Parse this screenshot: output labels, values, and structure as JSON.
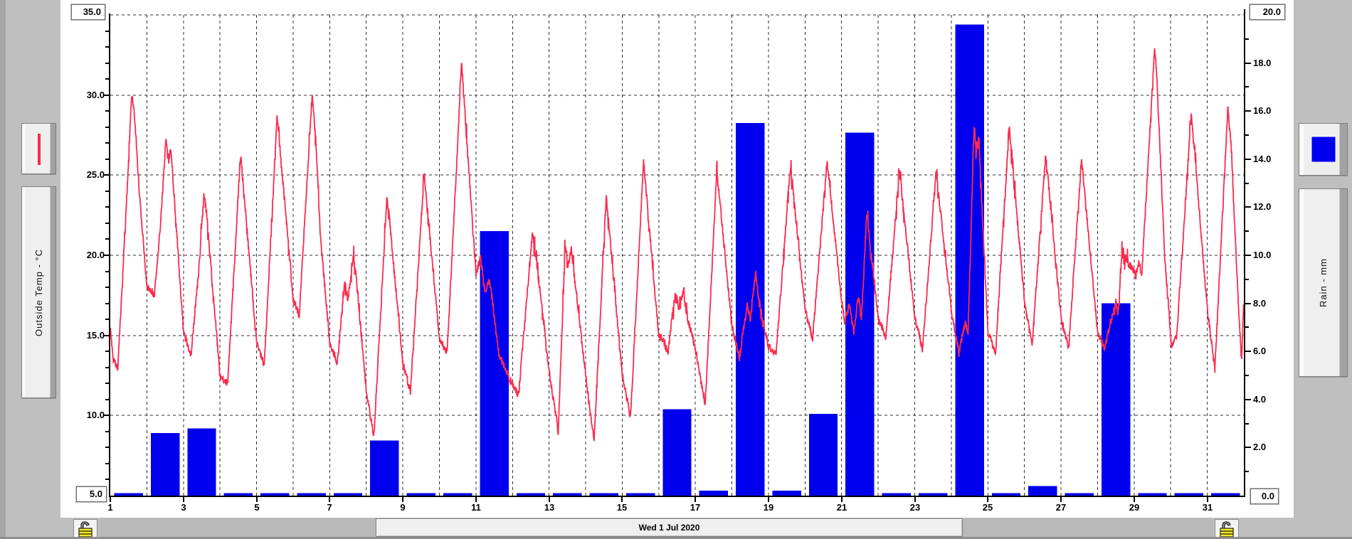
{
  "scrollbar": {
    "date_label": "Wed 1 Jul 2020"
  },
  "legend_left": {
    "series_label": "Outside Temp - °C",
    "sample": "red-line"
  },
  "legend_right": {
    "series_label": "Rain - mm",
    "sample": "blue-square"
  },
  "value_boxes": {
    "temp_axis_max": "35.0",
    "temp_axis_min": "5.0",
    "rain_axis_max": "20.0",
    "rain_axis_min": "0.0"
  },
  "colors": {
    "temp_line": "#fa2b4d",
    "rain_bar": "#0000ee",
    "grid": "#2d2d2d",
    "axis": "#000000",
    "panel": "#ffffff",
    "window_bg": "#bfbfbf"
  },
  "chart_data": {
    "type": "line+bar",
    "title": "",
    "x_axis": {
      "days": 31,
      "tick_labels": [
        "1",
        "3",
        "5",
        "7",
        "9",
        "11",
        "13",
        "15",
        "17",
        "19",
        "21",
        "23",
        "25",
        "27",
        "29",
        "31"
      ],
      "grid": "dashed-every-day"
    },
    "left_axis": {
      "label": "Outside Temp - °C",
      "min": 5,
      "max": 35,
      "minor_step": 1,
      "major_step": 5,
      "mid_labels": [
        "30.0",
        "25.0",
        "20.0",
        "15.0",
        "10.0"
      ],
      "boxed_max": "35.0",
      "boxed_min": "5.0"
    },
    "right_axis": {
      "label": "Rain - mm",
      "min": 0,
      "max": 20,
      "minor_step": 1,
      "major_step": 2,
      "mid_labels": [
        "18.0",
        "16.0",
        "14.0",
        "12.0",
        "10.0",
        "8.0",
        "6.0",
        "4.0",
        "2.0"
      ],
      "boxed_max": "20.0",
      "boxed_min": "0.0"
    },
    "series": [
      {
        "name": "Outside Temp",
        "unit": "°C",
        "type": "line",
        "days": [
          {
            "day": 1,
            "low": 13.0,
            "high": 30.0,
            "points": [
              [
                0,
                15.5
              ],
              [
                2,
                13.5
              ],
              [
                5,
                13.0
              ],
              [
                10,
                22
              ],
              [
                14,
                30
              ],
              [
                15.5,
                29.2
              ],
              [
                19,
                24
              ],
              [
                24,
                18
              ]
            ]
          },
          {
            "day": 2,
            "low": 17.5,
            "high": 27.3,
            "points": [
              [
                3,
                17.8
              ],
              [
                5,
                17.5
              ],
              [
                9,
                22
              ],
              [
                12.5,
                27.3
              ],
              [
                14,
                25.8
              ],
              [
                15.5,
                26.9
              ],
              [
                17,
                25
              ],
              [
                24,
                15.2
              ]
            ]
          },
          {
            "day": 3,
            "low": 13.8,
            "high": 23.8,
            "points": [
              [
                5,
                13.8
              ],
              [
                10,
                19
              ],
              [
                13.5,
                23.8
              ],
              [
                15,
                22.8
              ],
              [
                24,
                12.5
              ]
            ]
          },
          {
            "day": 4,
            "low": 11.9,
            "high": 26.3,
            "points": [
              [
                5,
                11.9
              ],
              [
                13.5,
                26.3
              ],
              [
                24,
                14.6
              ]
            ]
          },
          {
            "day": 5,
            "low": 13.1,
            "high": 28.7,
            "points": [
              [
                5,
                13.1
              ],
              [
                13.5,
                28.7
              ],
              [
                24,
                17.2
              ]
            ]
          },
          {
            "day": 6,
            "low": 16.3,
            "high": 30.0,
            "points": [
              [
                4,
                16.3
              ],
              [
                12.5,
                30
              ],
              [
                15,
                27
              ],
              [
                18,
                21
              ],
              [
                24,
                14.6
              ]
            ]
          },
          {
            "day": 7,
            "low": 13.3,
            "high": 20.0,
            "points": [
              [
                5,
                13.3
              ],
              [
                10,
                18.4
              ],
              [
                12,
                17.2
              ],
              [
                15.5,
                20
              ],
              [
                17,
                19
              ],
              [
                24,
                11.6
              ]
            ]
          },
          {
            "day": 8,
            "low": 8.6,
            "high": 23.5,
            "points": [
              [
                5,
                8.6
              ],
              [
                13.5,
                23.5
              ],
              [
                15,
                22.5
              ],
              [
                24,
                13.2
              ]
            ]
          },
          {
            "day": 9,
            "low": 11.5,
            "high": 25.1,
            "points": [
              [
                5,
                11.5
              ],
              [
                14,
                25.1
              ],
              [
                24,
                14.8
              ]
            ]
          },
          {
            "day": 10,
            "low": 13.9,
            "high": 32.0,
            "points": [
              [
                5,
                13.9
              ],
              [
                11,
                25
              ],
              [
                14.5,
                32
              ],
              [
                16,
                30
              ],
              [
                24,
                18.8
              ]
            ]
          },
          {
            "day": 11,
            "low": 11.9,
            "high": 19.9,
            "points": [
              [
                0,
                18.2
              ],
              [
                3,
                19.9
              ],
              [
                6,
                17.6
              ],
              [
                8.5,
                18.4
              ],
              [
                10,
                17.8
              ],
              [
                15,
                13.8
              ],
              [
                19,
                13
              ],
              [
                24,
                11.9
              ]
            ]
          },
          {
            "day": 12,
            "low": 11.3,
            "high": 21.4,
            "points": [
              [
                4,
                11.3
              ],
              [
                13,
                21.4
              ],
              [
                15,
                20.3
              ],
              [
                24,
                12.8
              ]
            ]
          },
          {
            "day": 13,
            "low": 9.0,
            "high": 20.6,
            "points": [
              [
                6,
                9.0
              ],
              [
                10.5,
                20.6
              ],
              [
                12.5,
                19.3
              ],
              [
                14.5,
                20.4
              ],
              [
                24,
                12.5
              ]
            ]
          },
          {
            "day": 14,
            "low": 8.4,
            "high": 23.7,
            "points": [
              [
                5.5,
                8.4
              ],
              [
                13.5,
                23.7
              ],
              [
                24,
                12.6
              ]
            ]
          },
          {
            "day": 15,
            "low": 9.9,
            "high": 25.9,
            "points": [
              [
                5.5,
                9.9
              ],
              [
                14,
                25.9
              ],
              [
                24,
                15.0
              ]
            ]
          },
          {
            "day": 16,
            "low": 13.8,
            "high": 17.7,
            "points": [
              [
                4,
                14.5
              ],
              [
                6,
                13.8
              ],
              [
                9,
                16.5
              ],
              [
                11,
                17.6
              ],
              [
                13,
                16.8
              ],
              [
                16,
                17.7
              ],
              [
                19,
                16.0
              ],
              [
                24,
                14.2
              ]
            ]
          },
          {
            "day": 17,
            "low": 10.7,
            "high": 25.2,
            "points": [
              [
                5,
                11.5
              ],
              [
                6.5,
                10.7
              ],
              [
                14,
                25.2
              ],
              [
                16,
                23.5
              ],
              [
                24,
                15.6
              ]
            ]
          },
          {
            "day": 18,
            "low": 13.6,
            "high": 18.9,
            "points": [
              [
                5,
                13.6
              ],
              [
                10,
                17.0
              ],
              [
                12,
                16.0
              ],
              [
                15.5,
                18.9
              ],
              [
                18,
                17.0
              ],
              [
                24,
                14.3
              ]
            ]
          },
          {
            "day": 19,
            "low": 13.9,
            "high": 25.6,
            "points": [
              [
                5,
                13.9
              ],
              [
                14.5,
                25.6
              ],
              [
                24,
                16.6
              ]
            ]
          },
          {
            "day": 20,
            "low": 14.8,
            "high": 25.9,
            "points": [
              [
                5,
                14.8
              ],
              [
                14.5,
                25.9
              ],
              [
                24,
                17.1
              ]
            ]
          },
          {
            "day": 21,
            "low": 15.2,
            "high": 22.7,
            "points": [
              [
                2,
                15.9
              ],
              [
                5,
                16.9
              ],
              [
                8,
                15.2
              ],
              [
                11,
                17.5
              ],
              [
                13,
                15.9
              ],
              [
                16.5,
                22.7
              ],
              [
                18.5,
                20.8
              ],
              [
                24,
                16.1
              ]
            ]
          },
          {
            "day": 22,
            "low": 14.9,
            "high": 25.3,
            "points": [
              [
                5,
                14.9
              ],
              [
                14,
                25.3
              ],
              [
                24,
                16.2
              ]
            ]
          },
          {
            "day": 23,
            "low": 14.1,
            "high": 25.2,
            "points": [
              [
                5,
                14.1
              ],
              [
                14,
                25.2
              ],
              [
                24,
                16.6
              ]
            ]
          },
          {
            "day": 24,
            "low": 13.9,
            "high": 28.2,
            "points": [
              [
                5,
                13.9
              ],
              [
                9,
                15.8
              ],
              [
                11,
                15.2
              ],
              [
                15,
                28.2
              ],
              [
                16.5,
                26.3
              ],
              [
                18,
                27.5
              ],
              [
                24,
                15.2
              ]
            ]
          },
          {
            "day": 25,
            "low": 13.9,
            "high": 28.0,
            "points": [
              [
                5,
                13.9
              ],
              [
                14,
                28.0
              ],
              [
                24,
                17.2
              ]
            ]
          },
          {
            "day": 26,
            "low": 14.3,
            "high": 26.3,
            "points": [
              [
                5,
                14.3
              ],
              [
                14,
                26.3
              ],
              [
                24,
                16.1
              ]
            ]
          },
          {
            "day": 27,
            "low": 14.2,
            "high": 26.0,
            "points": [
              [
                5,
                14.2
              ],
              [
                13.5,
                26.0
              ],
              [
                24,
                15.2
              ]
            ]
          },
          {
            "day": 28,
            "low": 14.2,
            "high": 20.3,
            "points": [
              [
                4.5,
                14.2
              ],
              [
                12,
                17.1
              ],
              [
                13.5,
                16.3
              ],
              [
                16,
                20.3
              ],
              [
                20,
                19.5
              ],
              [
                24,
                19.0
              ]
            ]
          },
          {
            "day": 29,
            "low": 18.6,
            "high": 33.0,
            "points": [
              [
                1,
                18.6
              ],
              [
                3,
                19.6
              ],
              [
                5,
                18.8
              ],
              [
                13.5,
                33.0
              ],
              [
                15,
                31.0
              ],
              [
                20,
                20.0
              ],
              [
                24,
                15.0
              ]
            ]
          },
          {
            "day": 30,
            "low": 14.4,
            "high": 28.9,
            "points": [
              [
                0.5,
                14.4
              ],
              [
                4,
                15.0
              ],
              [
                13.5,
                28.9
              ],
              [
                16,
                26.0
              ],
              [
                24,
                16.6
              ]
            ]
          },
          {
            "day": 31,
            "low": 12.9,
            "high": 29.3,
            "points": [
              [
                5,
                12.9
              ],
              [
                13.5,
                29.3
              ],
              [
                15.5,
                27.0
              ],
              [
                20,
                17.8
              ],
              [
                22.5,
                13.4
              ],
              [
                24,
                17.3
              ]
            ]
          }
        ]
      },
      {
        "name": "Rain",
        "unit": "mm",
        "type": "bar",
        "values": [
          0.1,
          2.6,
          2.8,
          0.1,
          0.1,
          0.1,
          0.1,
          2.3,
          0.1,
          0.1,
          11.0,
          0.1,
          0.1,
          0.1,
          0.1,
          3.6,
          0.2,
          15.5,
          0.2,
          3.4,
          15.1,
          0.1,
          0.1,
          19.6,
          0.1,
          0.4,
          0.1,
          8.0,
          0.1,
          0.1,
          0.1
        ]
      }
    ]
  }
}
